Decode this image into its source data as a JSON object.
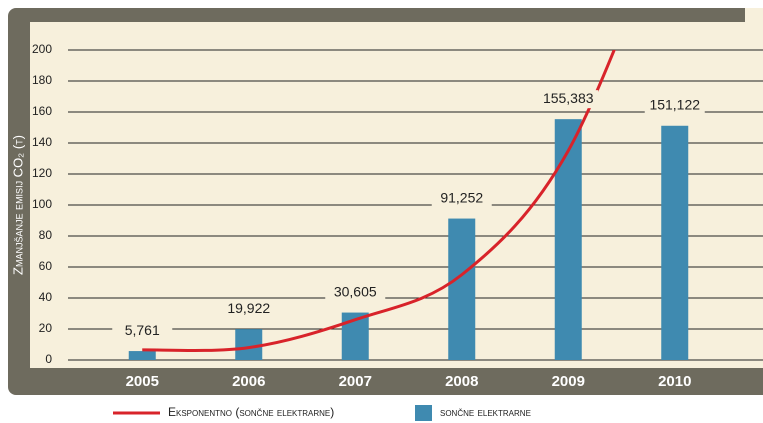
{
  "chart_data": {
    "type": "bar",
    "y_label": "Zmanjšanje emisij CO₂ (t)",
    "categories": [
      "2005",
      "2006",
      "2007",
      "2008",
      "2009",
      "2010"
    ],
    "series": [
      {
        "name": "sončne elektrarne",
        "type": "bar",
        "color": "#3f8ab0",
        "values": [
          5.761,
          19.922,
          30.605,
          91.252,
          155.383,
          151.122
        ],
        "value_labels": [
          "5,761",
          "19,922",
          "30,605",
          "91,252",
          "155,383",
          "151,122"
        ]
      },
      {
        "name": "Eksponentno (sončne elektrarne)",
        "type": "line",
        "color": "#d8232a",
        "values": [
          6.5,
          8,
          26,
          55,
          135,
          300
        ]
      }
    ],
    "ylim": [
      0,
      200
    ],
    "yticks": [
      0,
      20,
      40,
      60,
      80,
      100,
      120,
      140,
      160,
      180,
      200
    ],
    "grid": true
  }
}
